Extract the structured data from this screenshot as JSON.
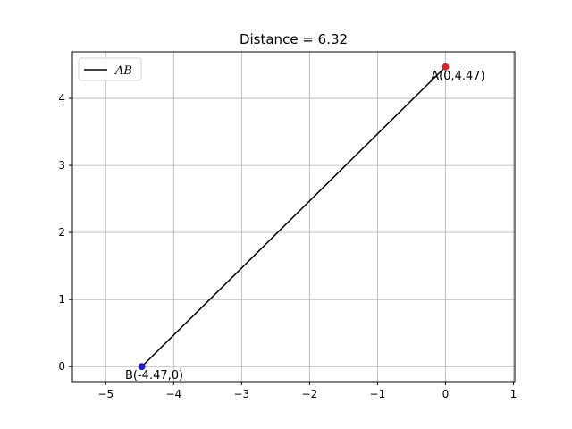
{
  "chart_data": {
    "type": "scatter",
    "title": "Distance = 6.32",
    "xlabel": "",
    "ylabel": "",
    "xlim": [
      -5.49,
      1.02
    ],
    "ylim": [
      -0.2235,
      4.6935
    ],
    "xticks": [
      -5,
      -4,
      -3,
      -2,
      -1,
      0,
      1
    ],
    "yticks": [
      0,
      1,
      2,
      3,
      4
    ],
    "xtick_labels": [
      "−5",
      "−4",
      "−3",
      "−2",
      "−1",
      "0",
      "1"
    ],
    "ytick_labels": [
      "0",
      "1",
      "2",
      "3",
      "4"
    ],
    "grid": true,
    "legend": {
      "position": "top-left",
      "entries": [
        {
          "label": "AB",
          "color": "#000000",
          "marker": "line"
        }
      ]
    },
    "series": [
      {
        "name": "AB",
        "type": "line",
        "color": "#000000",
        "x": [
          0,
          -4.47
        ],
        "y": [
          4.47,
          0
        ]
      }
    ],
    "points": [
      {
        "x": 0,
        "y": 4.47,
        "color": "#d62728",
        "label": "A(0,4.47)"
      },
      {
        "x": -4.47,
        "y": 0,
        "color": "#1f1fcf",
        "label": "B(-4.47,0)"
      }
    ]
  }
}
